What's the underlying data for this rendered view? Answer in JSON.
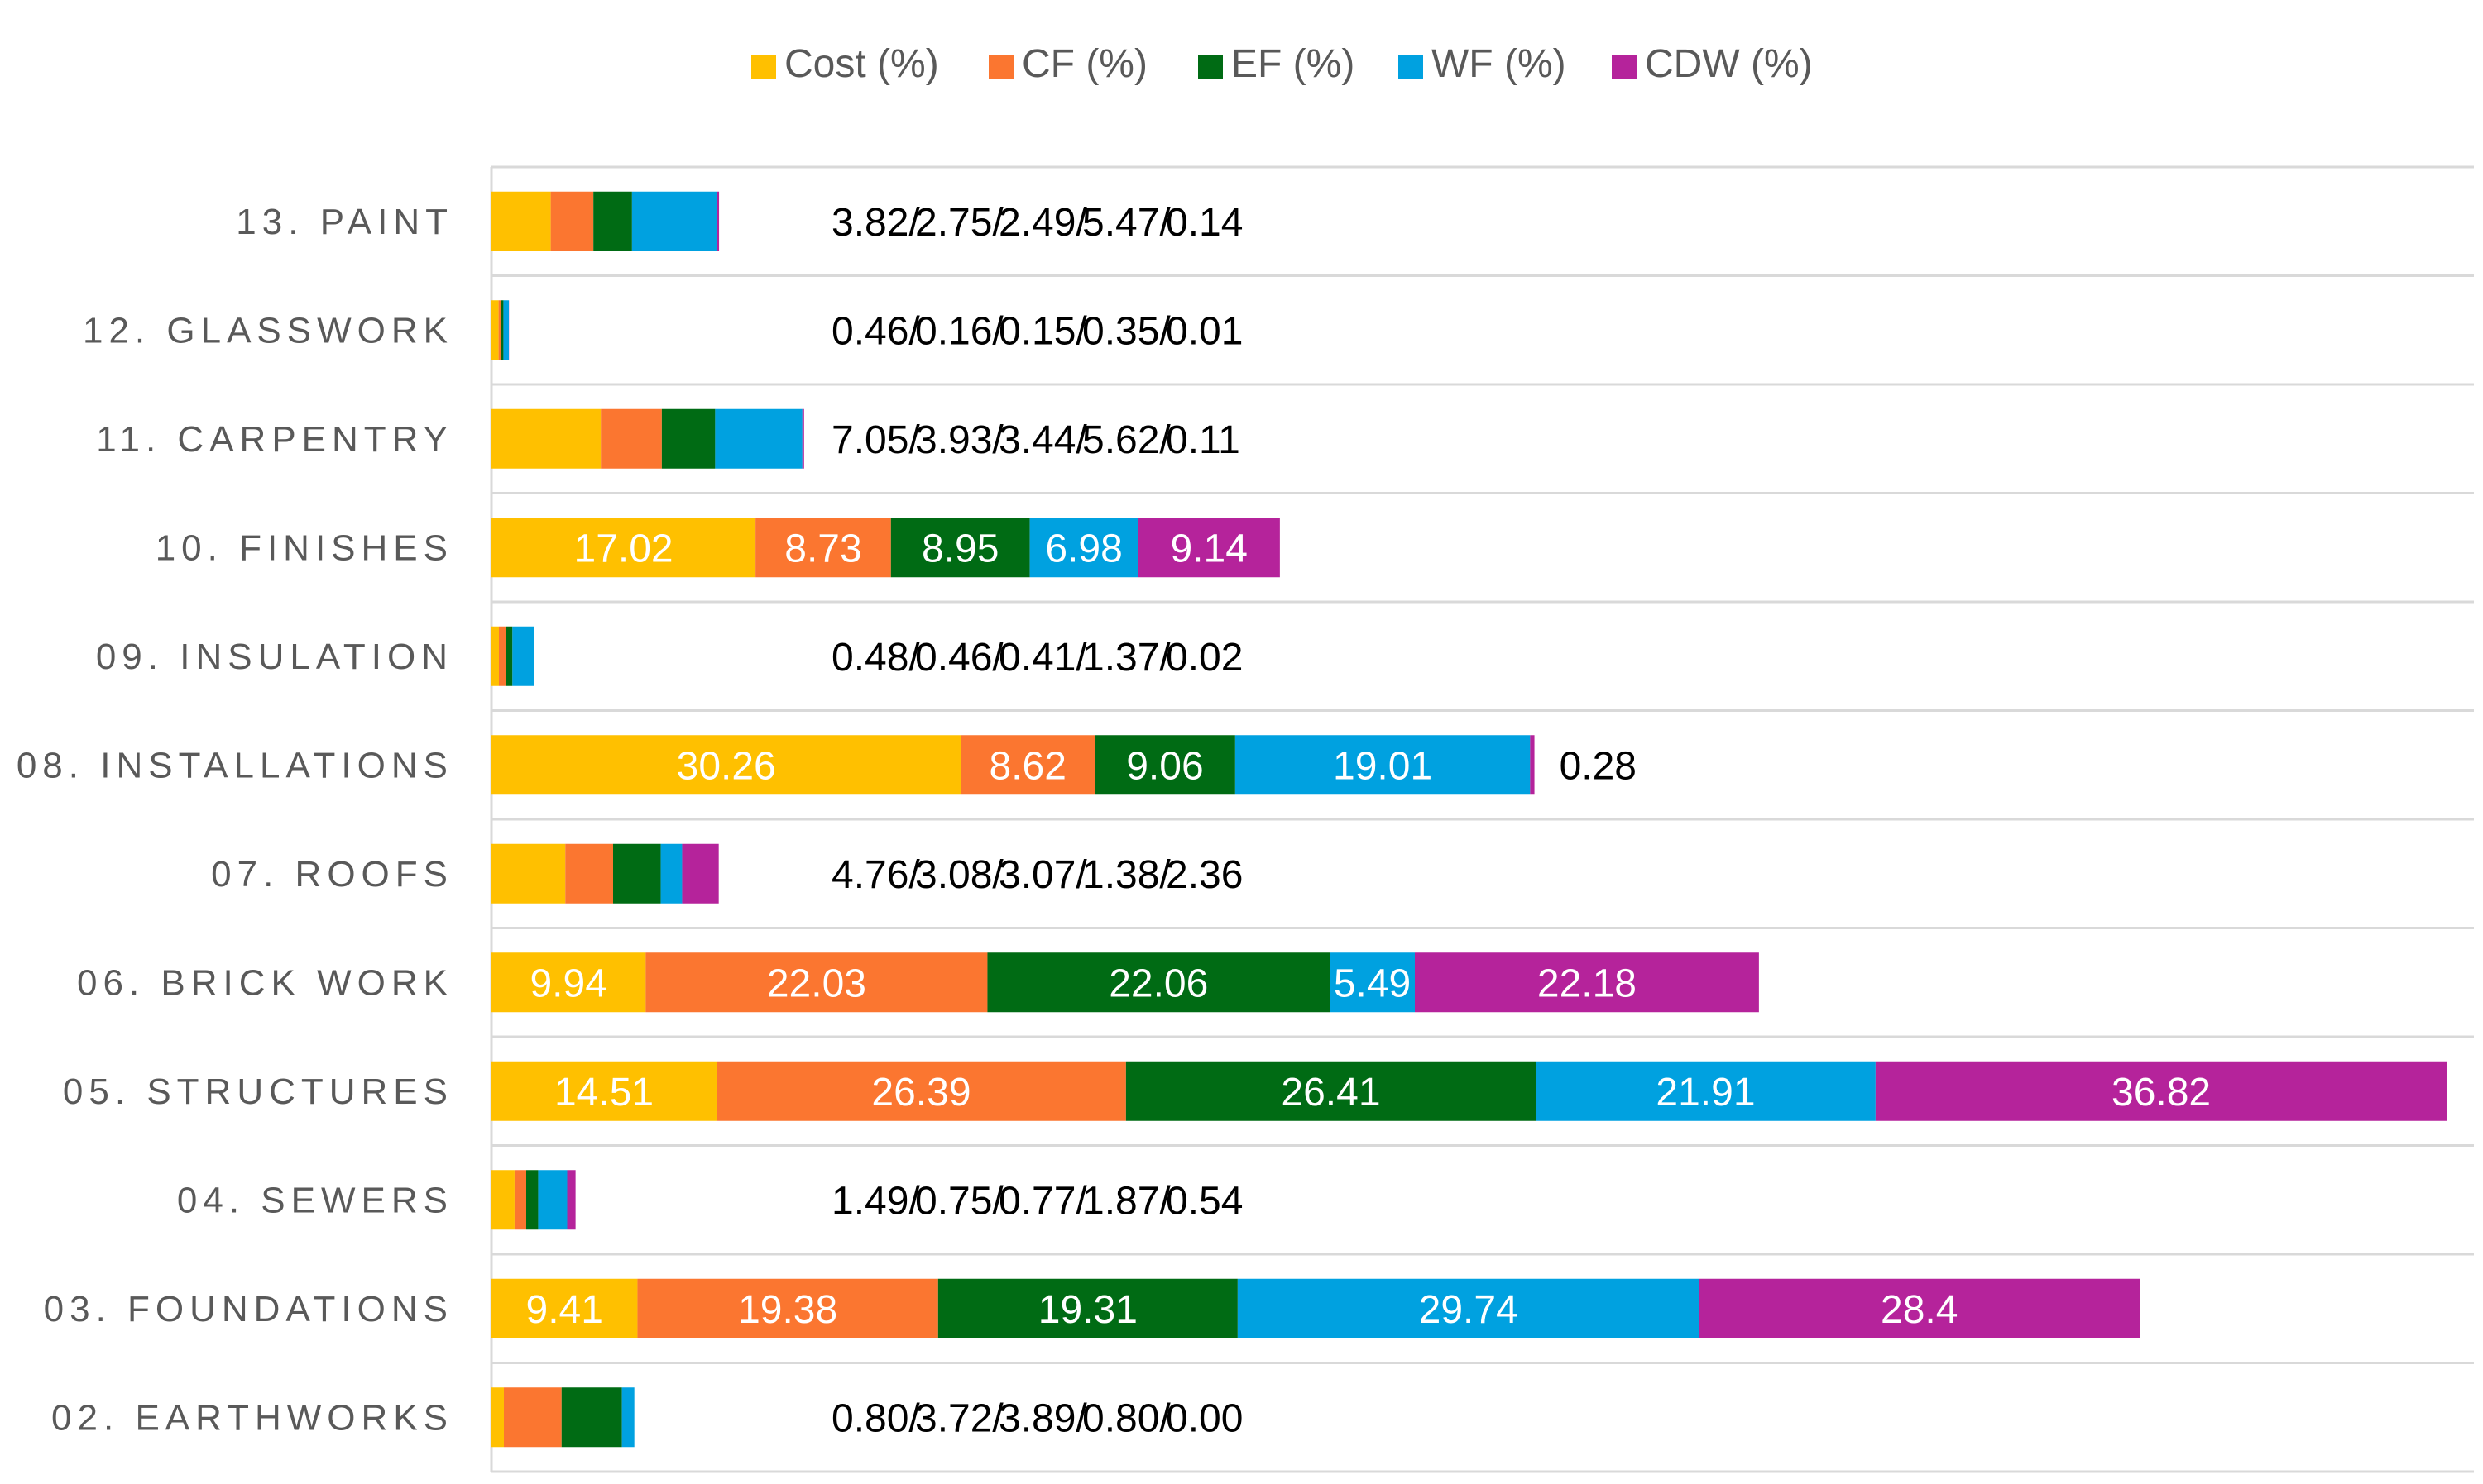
{
  "chart_data": {
    "type": "bar",
    "orientation": "horizontal",
    "stacked": true,
    "title": "",
    "xlabel": "",
    "ylabel": "",
    "legend_position": "top-center",
    "grid": true,
    "categories": [
      "13. PAINT",
      "12. GLASSWORK",
      "11. CARPENTRY",
      "10. FINISHES",
      "09. INSULATION",
      "08. INSTALLATIONS",
      "07. ROOFS",
      "06. BRICK WORK",
      "05. STRUCTURES",
      "04. SEWERS",
      "03. FOUNDATIONS",
      "02. EARTHWORKS"
    ],
    "series": [
      {
        "name": "Cost (%)",
        "color": "#ffc000",
        "values": [
          3.82,
          0.46,
          7.05,
          17.02,
          0.48,
          30.26,
          4.76,
          9.94,
          14.51,
          1.49,
          9.41,
          0.8
        ]
      },
      {
        "name": "CF (%)",
        "color": "#fb7630",
        "values": [
          2.75,
          0.16,
          3.93,
          8.73,
          0.46,
          8.62,
          3.08,
          22.03,
          26.39,
          0.75,
          19.38,
          3.72
        ]
      },
      {
        "name": "EF (%)",
        "color": "#006b14",
        "values": [
          2.49,
          0.15,
          3.44,
          8.95,
          0.41,
          9.06,
          3.07,
          22.06,
          26.41,
          0.77,
          19.31,
          3.89
        ]
      },
      {
        "name": "WF (%)",
        "color": "#00a1e0",
        "values": [
          5.47,
          0.35,
          5.62,
          6.98,
          1.37,
          19.01,
          1.38,
          5.49,
          21.91,
          1.87,
          29.74,
          0.8
        ]
      },
      {
        "name": "CDW (%)",
        "color": "#b5239b",
        "values": [
          0.14,
          0.01,
          0.11,
          9.14,
          0.02,
          0.28,
          2.36,
          22.18,
          36.82,
          0.54,
          28.4,
          0.0
        ]
      }
    ],
    "segment_labels": [
      null,
      null,
      null,
      [
        "17.02",
        "8.73",
        "8.95",
        "6.98",
        "9.14"
      ],
      null,
      [
        "30.26",
        "8.62",
        "9.06",
        "19.01",
        null
      ],
      null,
      [
        "9.94",
        "22.03",
        "22.06",
        "5.49",
        "22.18"
      ],
      [
        "14.51",
        "26.39",
        "26.41",
        "21.91",
        "36.82"
      ],
      null,
      [
        "9.41",
        "19.38",
        "19.31",
        "29.74",
        "28.4"
      ],
      null
    ],
    "external_labels": [
      [
        "3.82/",
        "2.75/",
        "2.49/",
        "5.47/",
        "0.14"
      ],
      [
        "0.46/",
        "0.16/",
        "0.15/",
        "0.35/",
        "0.01"
      ],
      [
        "7.05/",
        "3.93/",
        "3.44/",
        "5.62/",
        "0.11"
      ],
      null,
      [
        "0.48/",
        "0.46/",
        "0.41/",
        "1.37/",
        "0.02"
      ],
      [
        "0.28"
      ],
      [
        "4.76/",
        "3.08/",
        "3.07/",
        "1.38/",
        "2.36"
      ],
      null,
      null,
      [
        "1.49/",
        "0.75/",
        "0.77/",
        "1.87/",
        "0.54"
      ],
      null,
      [
        "0.80/",
        "3.72/",
        "3.89/",
        "0.80/",
        "0.00"
      ]
    ]
  }
}
